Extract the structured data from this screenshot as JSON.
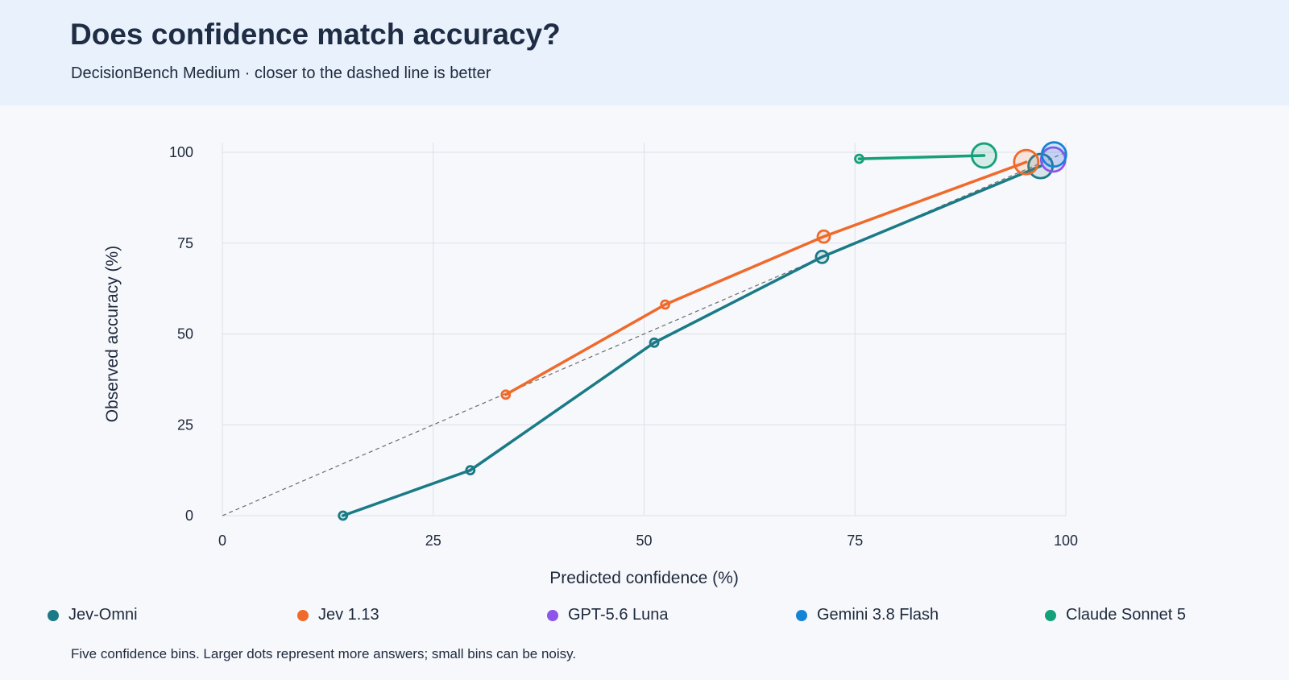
{
  "header": {
    "title": "Does confidence match accuracy?",
    "subtitle": "DecisionBench Medium · closer to the dashed line is better"
  },
  "footnote": "Five confidence bins. Larger dots represent more answers; small bins can be noisy.",
  "chart_data": {
    "type": "line",
    "title": "Does confidence match accuracy?",
    "subtitle": "DecisionBench Medium · closer to the dashed line is better",
    "xlabel": "Predicted confidence (%)",
    "ylabel": "Observed accuracy (%)",
    "xlim": [
      0,
      100
    ],
    "ylim": [
      0,
      100
    ],
    "xticks": [
      0,
      25,
      50,
      75,
      100
    ],
    "yticks": [
      0,
      25,
      50,
      75,
      100
    ],
    "grid": true,
    "legend_position": "bottom",
    "reference_line": "diagonal y = x, dashed",
    "series": [
      {
        "name": "Jev-Omni",
        "color": "#1a7a86",
        "points": [
          {
            "x": 14.3,
            "y": 0,
            "n": "small"
          },
          {
            "x": 29.4,
            "y": 12.5,
            "n": "small"
          },
          {
            "x": 51.2,
            "y": 47.6,
            "n": "small"
          },
          {
            "x": 71.1,
            "y": 71.2,
            "n": "medium"
          },
          {
            "x": 97.0,
            "y": 96.2,
            "n": "large"
          }
        ]
      },
      {
        "name": "Jev 1.13",
        "color": "#ef6a2b",
        "points": [
          {
            "x": 33.6,
            "y": 33.3,
            "n": "small"
          },
          {
            "x": 52.5,
            "y": 58.1,
            "n": "small"
          },
          {
            "x": 71.3,
            "y": 76.8,
            "n": "medium"
          },
          {
            "x": 95.3,
            "y": 97.3,
            "n": "large"
          }
        ]
      },
      {
        "name": "GPT-5.6 Luna",
        "color": "#8d55e8",
        "points": [
          {
            "x": 98.5,
            "y": 98.0,
            "n": "large"
          }
        ]
      },
      {
        "name": "Gemini 3.8 Flash",
        "color": "#1584d6",
        "points": [
          {
            "x": 98.6,
            "y": 99.4,
            "n": "large"
          }
        ]
      },
      {
        "name": "Claude Sonnet 5",
        "color": "#14a07a",
        "points": [
          {
            "x": 75.5,
            "y": 98.2,
            "n": "small"
          },
          {
            "x": 90.3,
            "y": 99.1,
            "n": "large"
          }
        ]
      }
    ]
  }
}
